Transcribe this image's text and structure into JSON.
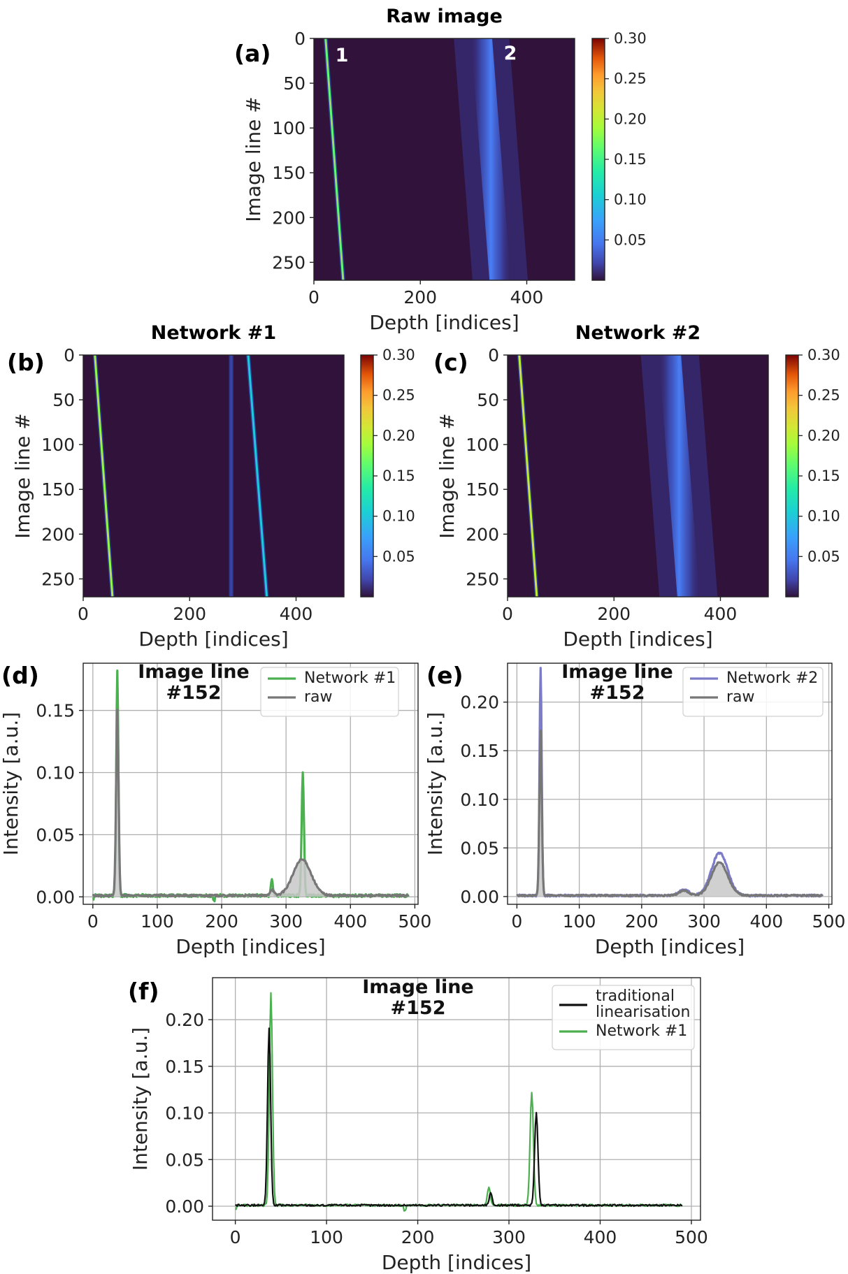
{
  "chart_data": [
    {
      "id": "a",
      "type": "heatmap",
      "panel_label": "(a)",
      "title": "Raw image",
      "xlabel": "Depth [indices]",
      "ylabel": "Image line #",
      "xlim": [
        0,
        490
      ],
      "ylim": [
        270,
        0
      ],
      "xticks": [
        "0",
        "200",
        "400"
      ],
      "yticks": [
        "0",
        "50",
        "100",
        "150",
        "200",
        "250"
      ],
      "colorbar": {
        "range": [
          0,
          0.3
        ],
        "ticks": [
          "0.05",
          "0.10",
          "0.15",
          "0.20",
          "0.25",
          "0.30"
        ],
        "colormap": "turbo"
      },
      "annotations": [
        "1",
        "2"
      ],
      "features": [
        {
          "kind": "line",
          "depth_start": 22,
          "depth_end": 55,
          "intensity": 0.16
        },
        {
          "kind": "band",
          "depth_start": 315,
          "depth_end": 350,
          "width": 40,
          "intensity": 0.03
        }
      ]
    },
    {
      "id": "b",
      "type": "heatmap",
      "panel_label": "(b)",
      "title": "Network #1",
      "xlabel": "Depth [indices]",
      "ylabel": "Image line #",
      "xlim": [
        0,
        490
      ],
      "ylim": [
        270,
        0
      ],
      "xticks": [
        "0",
        "200",
        "400"
      ],
      "yticks": [
        "0",
        "50",
        "100",
        "150",
        "200",
        "250"
      ],
      "colorbar": {
        "range": [
          0,
          0.3
        ],
        "ticks": [
          "0.05",
          "0.10",
          "0.15",
          "0.20",
          "0.25",
          "0.30"
        ],
        "colormap": "turbo"
      },
      "features": [
        {
          "kind": "line",
          "depth_start": 22,
          "depth_end": 55,
          "intensity": 0.18
        },
        {
          "kind": "line",
          "depth_start": 278,
          "depth_end": 278,
          "intensity": 0.02
        },
        {
          "kind": "line",
          "depth_start": 310,
          "depth_end": 345,
          "intensity": 0.1
        }
      ]
    },
    {
      "id": "c",
      "type": "heatmap",
      "panel_label": "(c)",
      "title": "Network #2",
      "xlabel": "Depth [indices]",
      "ylabel": "Image line #",
      "xlim": [
        0,
        490
      ],
      "ylim": [
        270,
        0
      ],
      "xticks": [
        "0",
        "200",
        "400"
      ],
      "yticks": [
        "0",
        "50",
        "100",
        "150",
        "200",
        "250"
      ],
      "colorbar": {
        "range": [
          0,
          0.3
        ],
        "ticks": [
          "0.05",
          "0.10",
          "0.15",
          "0.20",
          "0.25",
          "0.30"
        ],
        "colormap": "turbo"
      },
      "features": [
        {
          "kind": "line",
          "depth_start": 22,
          "depth_end": 55,
          "intensity": 0.2
        },
        {
          "kind": "band",
          "depth_start": 305,
          "depth_end": 340,
          "width": 42,
          "intensity": 0.04
        }
      ]
    },
    {
      "id": "d",
      "type": "line",
      "panel_label": "(d)",
      "annotation": [
        "Image line",
        "#152"
      ],
      "xlabel": "Depth [indices]",
      "ylabel": "Intensity [a.u.]",
      "xlim": [
        -15,
        505
      ],
      "ylim": [
        -0.006,
        0.188
      ],
      "xticks": [
        0,
        100,
        200,
        300,
        400,
        500
      ],
      "yticks": [
        0.0,
        0.05,
        0.1,
        0.15
      ],
      "legend": "top-right",
      "series": [
        {
          "name": "Network #1",
          "color": "#4caf50",
          "peaks": [
            {
              "x": 38,
              "h": 0.182,
              "w": 1.6
            },
            {
              "x": 278,
              "h": 0.014,
              "w": 1.5
            },
            {
              "x": 326,
              "h": 0.099,
              "w": 1.8
            }
          ],
          "noise": 0.0012,
          "dips": [
            {
              "x": 0,
              "h": -0.003
            },
            {
              "x": 188,
              "h": -0.004
            }
          ]
        },
        {
          "name": "raw",
          "color": "#777777",
          "fill": true,
          "peaks": [
            {
              "x": 38,
              "h": 0.15,
              "w": 1.9
            },
            {
              "x": 278,
              "h": 0.005,
              "w": 3
            },
            {
              "x": 325,
              "h": 0.029,
              "w": 14
            }
          ],
          "noise": 0.0008,
          "dips": []
        }
      ]
    },
    {
      "id": "e",
      "type": "line",
      "panel_label": "(e)",
      "annotation": [
        "Image line",
        "#152"
      ],
      "xlabel": "Depth [indices]",
      "ylabel": "Intensity [a.u.]",
      "xlim": [
        -15,
        505
      ],
      "ylim": [
        -0.008,
        0.24
      ],
      "xticks": [
        0,
        100,
        200,
        300,
        400,
        500
      ],
      "yticks": [
        0.0,
        0.05,
        0.1,
        0.15,
        0.2
      ],
      "legend": "top-right",
      "series": [
        {
          "name": "Network #2",
          "color": "#7b7bc8",
          "peaks": [
            {
              "x": 38,
              "h": 0.235,
              "w": 1.7
            },
            {
              "x": 268,
              "h": 0.006,
              "w": 8
            },
            {
              "x": 325,
              "h": 0.044,
              "w": 13
            }
          ],
          "noise": 0.001,
          "dips": []
        },
        {
          "name": "raw",
          "color": "#777777",
          "fill": true,
          "peaks": [
            {
              "x": 38,
              "h": 0.17,
              "w": 1.9
            },
            {
              "x": 268,
              "h": 0.005,
              "w": 8
            },
            {
              "x": 325,
              "h": 0.034,
              "w": 13
            }
          ],
          "noise": 0.0008,
          "dips": []
        }
      ]
    },
    {
      "id": "f",
      "type": "line",
      "panel_label": "(f)",
      "annotation": [
        "Image line",
        "#152"
      ],
      "xlabel": "Depth [indices]",
      "ylabel": "Intensity [a.u.]",
      "xlim": [
        -25,
        510
      ],
      "ylim": [
        -0.015,
        0.245
      ],
      "xticks": [
        0,
        100,
        200,
        300,
        400,
        500
      ],
      "yticks": [
        0.0,
        0.05,
        0.1,
        0.15,
        0.2
      ],
      "legend": "top-right",
      "series": [
        {
          "name": "traditional linearisation",
          "legend_lines": [
            "traditional",
            "linearisation"
          ],
          "color": "#111111",
          "peaks": [
            {
              "x": 37,
              "h": 0.19,
              "w": 1.7
            },
            {
              "x": 280,
              "h": 0.013,
              "w": 1.6
            },
            {
              "x": 330,
              "h": 0.1,
              "w": 1.8
            }
          ],
          "noise": 0.001,
          "dips": []
        },
        {
          "name": "Network #1",
          "color": "#4caf50",
          "peaks": [
            {
              "x": 39,
              "h": 0.228,
              "w": 1.7
            },
            {
              "x": 278,
              "h": 0.02,
              "w": 1.6
            },
            {
              "x": 325,
              "h": 0.122,
              "w": 1.8
            }
          ],
          "noise": 0.0012,
          "dips": [
            {
              "x": 0,
              "h": -0.004
            },
            {
              "x": 186,
              "h": -0.005
            }
          ]
        }
      ]
    }
  ]
}
